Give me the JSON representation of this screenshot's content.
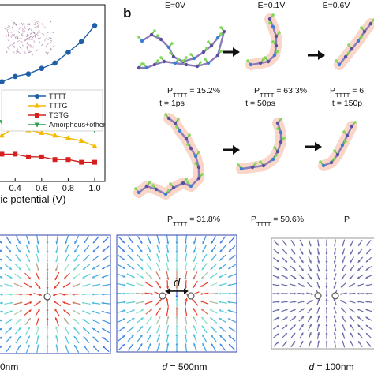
{
  "panel_b_label": "b",
  "chart_data": {
    "type": "line",
    "x": [
      0.0,
      0.1,
      0.2,
      0.3,
      0.4,
      0.5,
      0.6,
      0.7,
      0.8,
      0.9,
      1.0
    ],
    "xticks": [
      "0.4",
      "0.6",
      "0.8",
      "1.0"
    ],
    "xlabel": "ric potential (V)",
    "series": [
      {
        "name": "TTTT",
        "color": "#1f5fa6",
        "marker": "circle",
        "values": [
          0.46,
          0.47,
          0.49,
          0.51,
          0.53,
          0.54,
          0.56,
          0.58,
          0.62,
          0.66,
          0.72
        ]
      },
      {
        "name": "TTTG",
        "color": "#f5b800",
        "marker": "triangle-up",
        "values": [
          0.32,
          0.33,
          0.33,
          0.31,
          0.34,
          0.33,
          0.32,
          0.31,
          0.3,
          0.29,
          0.27
        ]
      },
      {
        "name": "TGTG",
        "color": "#d62020",
        "marker": "square",
        "values": [
          0.24,
          0.25,
          0.25,
          0.24,
          0.24,
          0.23,
          0.23,
          0.22,
          0.22,
          0.21,
          0.21
        ]
      },
      {
        "name": "Amorphous+other",
        "color": "#2ca050",
        "marker": "triangle-down",
        "values": [
          0.37,
          0.36,
          0.35,
          0.36,
          0.37,
          0.38,
          0.39,
          0.39,
          0.38,
          0.36,
          0.33
        ]
      }
    ]
  },
  "molecules": {
    "top_row": {
      "headers": [
        "E=0V",
        "E=0.1V",
        "E=0.6V"
      ],
      "p_labels": [
        "P",
        "P",
        "P"
      ],
      "p_subs": [
        "TTTT",
        "TTTT",
        "TTTT"
      ],
      "p_values": [
        " = 15.2%",
        " = 63.3%",
        " = 6"
      ]
    },
    "bottom_row": {
      "headers": [
        "t = 1ps",
        "t = 50ps",
        "t = 150p"
      ],
      "p_labels": [
        "P",
        "P",
        "P"
      ],
      "p_subs": [
        "TTTT",
        "TTTT",
        "TTTT"
      ],
      "p_values": [
        " = 31.8%",
        " = 50.6%",
        ""
      ]
    }
  },
  "fields": {
    "d_symbol": "d",
    "captions": [
      {
        "prefix": "",
        "value": "0nm"
      },
      {
        "prefix": "d",
        "value": " = 500nm"
      },
      {
        "prefix": "d",
        "value": " = 100nm"
      }
    ]
  }
}
